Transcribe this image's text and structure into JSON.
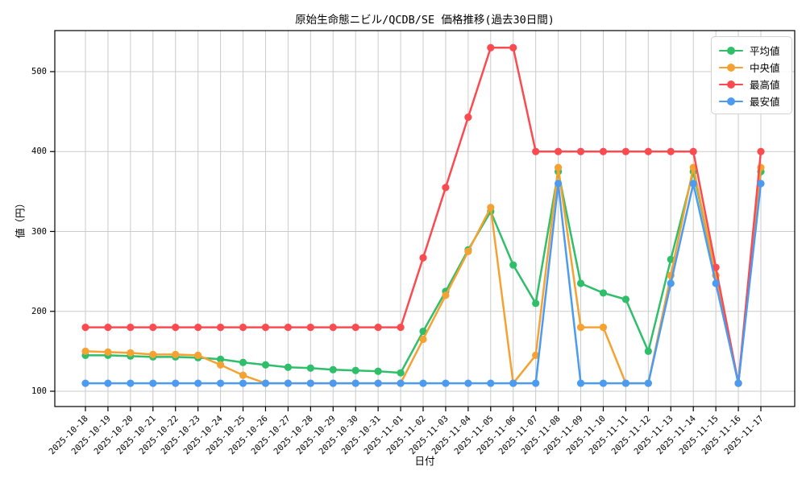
{
  "title": "原始生命態ニビル/QCDB/SE 価格推移(過去30日間)",
  "chart_data": {
    "type": "line",
    "title": "原始生命態ニビル/QCDB/SE 価格推移(過去30日間)",
    "xlabel": "日付",
    "ylabel": "値（円）",
    "x": [
      "2025-10-18",
      "2025-10-19",
      "2025-10-20",
      "2025-10-21",
      "2025-10-22",
      "2025-10-23",
      "2025-10-24",
      "2025-10-25",
      "2025-10-26",
      "2025-10-27",
      "2025-10-28",
      "2025-10-29",
      "2025-10-30",
      "2025-10-31",
      "2025-11-01",
      "2025-11-02",
      "2025-11-03",
      "2025-11-04",
      "2025-11-05",
      "2025-11-06",
      "2025-11-07",
      "2025-11-08",
      "2025-11-09",
      "2025-11-10",
      "2025-11-11",
      "2025-11-12",
      "2025-11-13",
      "2025-11-14",
      "2025-11-15",
      "2025-11-16",
      "2025-11-17"
    ],
    "series": [
      {
        "name": "平均値",
        "id": "mean",
        "color": "#2fbe69",
        "values": [
          145,
          145,
          144,
          143,
          143,
          142,
          140,
          136,
          133,
          130,
          129,
          127,
          126,
          125,
          123,
          175,
          225,
          277,
          325,
          258,
          210,
          375,
          235,
          223,
          215,
          150,
          265,
          375,
          245,
          110,
          375
        ]
      },
      {
        "name": "中央値",
        "id": "median",
        "color": "#f5a233",
        "values": [
          150,
          149,
          148,
          146,
          146,
          145,
          133,
          120,
          110,
          110,
          110,
          110,
          110,
          110,
          110,
          165,
          220,
          275,
          330,
          110,
          145,
          380,
          180,
          180,
          110,
          110,
          245,
          380,
          245,
          110,
          380
        ]
      },
      {
        "name": "最高値",
        "id": "max",
        "color": "#f94b50",
        "values": [
          180,
          180,
          180,
          180,
          180,
          180,
          180,
          180,
          180,
          180,
          180,
          180,
          180,
          180,
          180,
          267,
          355,
          443,
          530,
          530,
          400,
          400,
          400,
          400,
          400,
          400,
          400,
          400,
          255,
          110,
          400
        ]
      },
      {
        "name": "最安値",
        "id": "min",
        "color": "#4c9bf0",
        "values": [
          110,
          110,
          110,
          110,
          110,
          110,
          110,
          110,
          110,
          110,
          110,
          110,
          110,
          110,
          110,
          110,
          110,
          110,
          110,
          110,
          110,
          360,
          110,
          110,
          110,
          110,
          235,
          360,
          235,
          110,
          360
        ]
      }
    ],
    "yticks": [
      100,
      200,
      300,
      400,
      500
    ],
    "ylim": [
      75,
      551
    ],
    "grid": true,
    "legend_position": "upper right"
  },
  "colors": {
    "background": "#ffffff",
    "grid": "#cbcbcb",
    "axis": "#000000",
    "legend_border": "#d2d2d2"
  }
}
